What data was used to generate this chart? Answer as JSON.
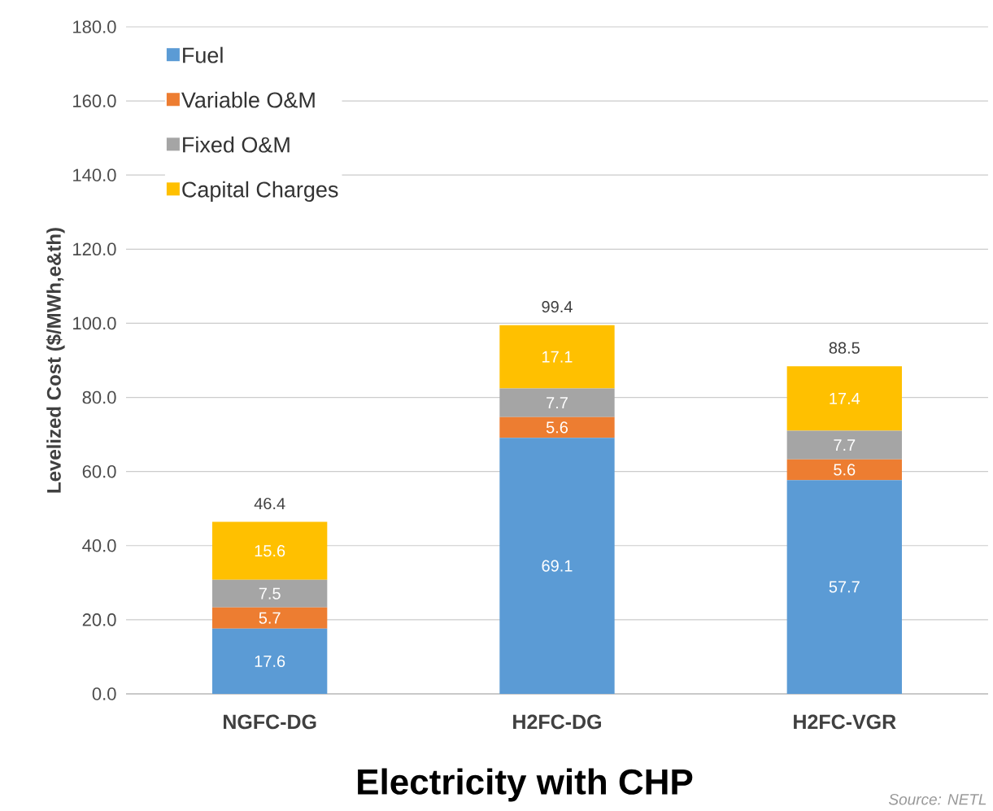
{
  "chart_data": {
    "type": "bar",
    "stacked": true,
    "title": "Electricity with CHP",
    "ylabel": "Levelized Cost ($/MWh,e&th)",
    "categories": [
      "NGFC-DG",
      "H2FC-DG",
      "H2FC-VGR"
    ],
    "series": [
      {
        "name": "Fuel",
        "color": "#5b9bd5",
        "values": [
          17.6,
          69.1,
          57.7
        ],
        "value_labels": [
          "17.6",
          "69.1",
          "57.7"
        ]
      },
      {
        "name": "Variable O&M",
        "color": "#ed7d31",
        "values": [
          5.7,
          5.6,
          5.6
        ],
        "value_labels": [
          "5.7",
          "5.6",
          "5.6"
        ]
      },
      {
        "name": "Fixed O&M",
        "color": "#a5a5a5",
        "values": [
          7.5,
          7.7,
          7.7
        ],
        "value_labels": [
          "7.5",
          "7.7",
          "7.7"
        ]
      },
      {
        "name": "Capital Charges",
        "color": "#ffc000",
        "values": [
          15.6,
          17.1,
          17.4
        ],
        "value_labels": [
          "15.6",
          "17.1",
          "17.4"
        ]
      }
    ],
    "totals": [
      "46.4",
      "99.4",
      "88.5"
    ],
    "ylim": [
      0,
      180
    ],
    "yticks": [
      {
        "value": 0,
        "label": "0.0"
      },
      {
        "value": 20,
        "label": "20.0"
      },
      {
        "value": 40,
        "label": "40.0"
      },
      {
        "value": 60,
        "label": "60.0"
      },
      {
        "value": 80,
        "label": "80.0"
      },
      {
        "value": 100,
        "label": "100.0"
      },
      {
        "value": 120,
        "label": "120.0"
      },
      {
        "value": 140,
        "label": "140.0"
      },
      {
        "value": 160,
        "label": "160.0"
      },
      {
        "value": 180,
        "label": "180.0"
      }
    ],
    "grid": "y",
    "legend": "top left",
    "annotations": [
      "Source: NETL"
    ]
  }
}
